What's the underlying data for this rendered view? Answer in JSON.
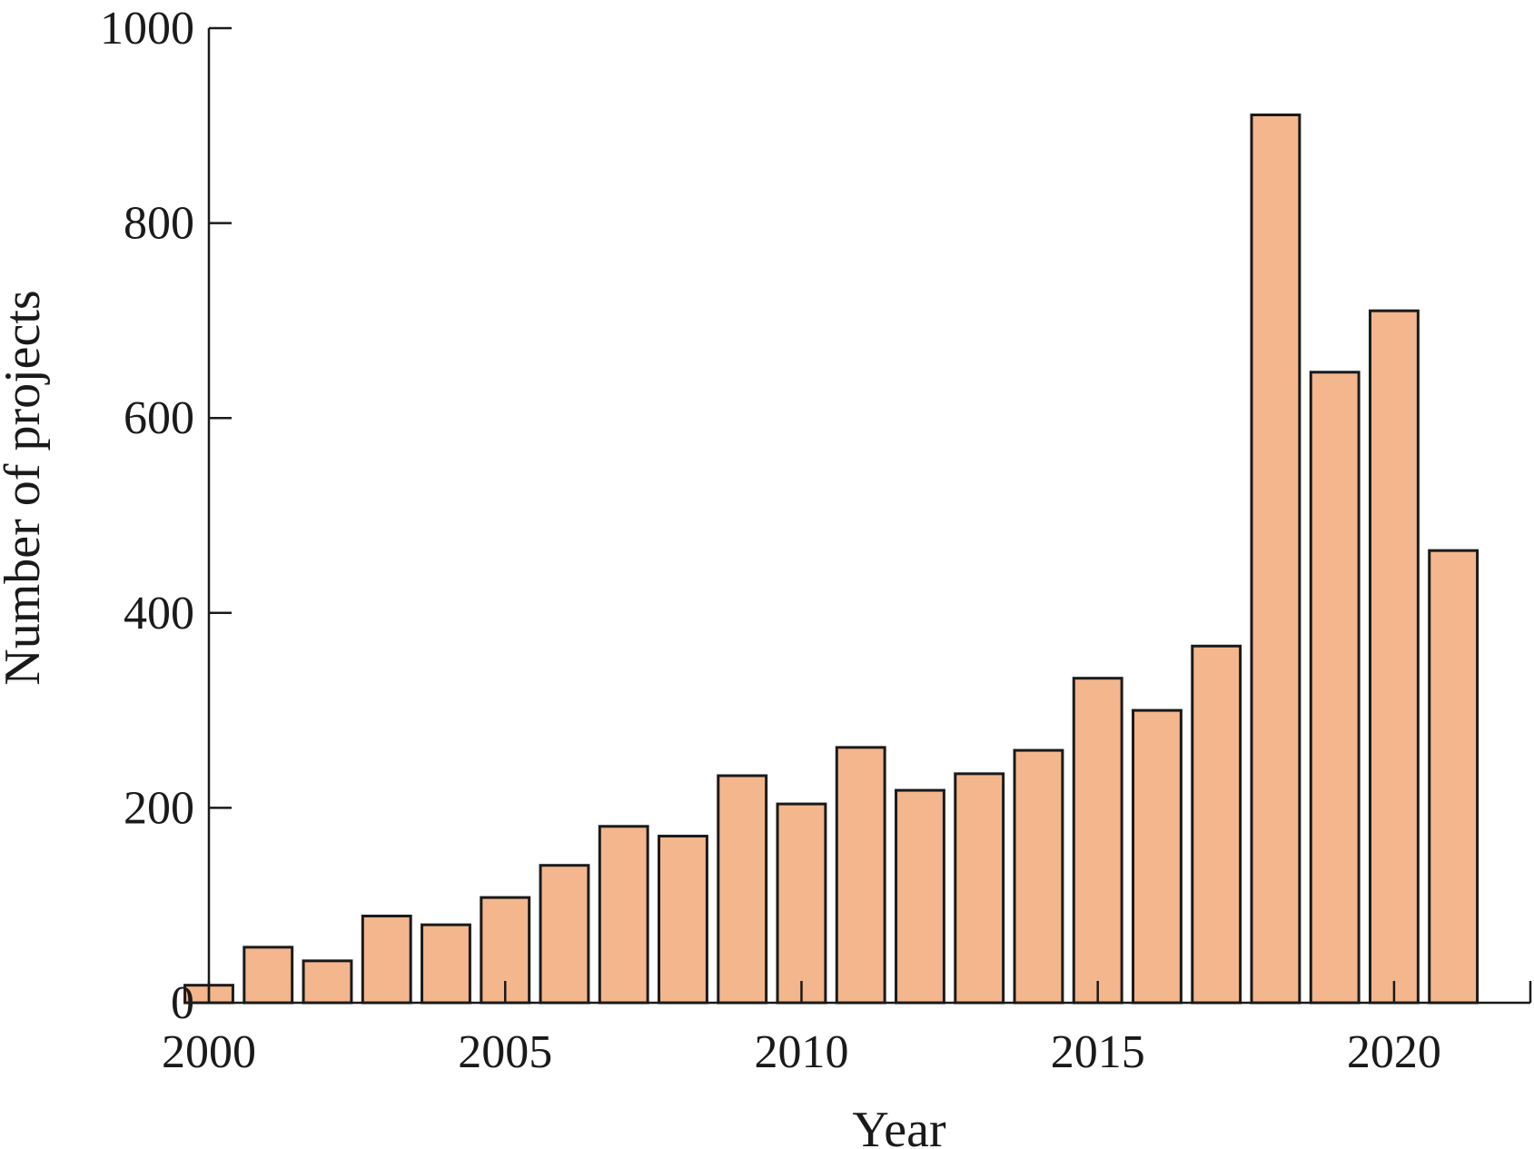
{
  "chart_data": {
    "type": "bar",
    "title": "",
    "xlabel": "Year",
    "ylabel": "Number of projects",
    "categories": [
      2000,
      2001,
      2002,
      2003,
      2004,
      2005,
      2006,
      2007,
      2008,
      2009,
      2010,
      2011,
      2012,
      2013,
      2014,
      2015,
      2016,
      2017,
      2018,
      2019,
      2020,
      2021
    ],
    "values": [
      18,
      57,
      43,
      89,
      80,
      108,
      141,
      181,
      171,
      233,
      204,
      262,
      218,
      235,
      259,
      333,
      300,
      366,
      911,
      647,
      710,
      464
    ],
    "xlim": [
      2000,
      2022.3
    ],
    "ylim": [
      0,
      1000
    ],
    "xticks": [
      2000,
      2005,
      2010,
      2015,
      2020
    ],
    "xtick_labels": [
      "2000",
      "2005",
      "2010",
      "2015",
      "2020"
    ],
    "yticks": [
      0,
      200,
      400,
      600,
      800,
      1000
    ],
    "ytick_labels": [
      "0",
      "200",
      "400",
      "600",
      "800",
      "1000"
    ],
    "grid": false,
    "legend": "none",
    "colors": {
      "bar_fill": "#f4b68c",
      "bar_edge": "#1a1a1a",
      "axis": "#1a1a1a"
    }
  }
}
